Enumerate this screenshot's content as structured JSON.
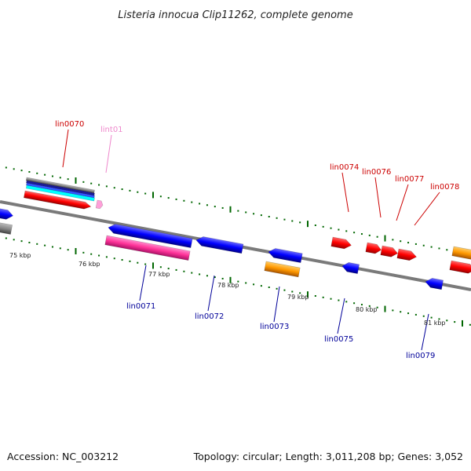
{
  "title": "Listeria innocua Clip11262, complete genome",
  "footer": {
    "accession": "Accession: NC_003212",
    "summary": "Topology: circular; Length: 3,011,208 bp; Genes: 3,052"
  },
  "colors": {
    "forward_cds": "#ff0000",
    "reverse_cds": "#0000ff",
    "rna": "#ff9900",
    "reverse_highlight": "#ff3399",
    "lint": "#ff9fd9",
    "label_forward": "#cc0000",
    "label_reverse": "#000099",
    "label_lint": "#ee88cc",
    "tick": "#006600",
    "backbone": "#7a7a7a"
  },
  "scale_labels": [
    "75 kbp",
    "76 kbp",
    "77 kbp",
    "78 kbp",
    "79 kbp",
    "80 kbp",
    "81 kbp"
  ],
  "gene_labels": {
    "forward": [
      "lin0070",
      "lin0074",
      "lin0076",
      "lin0077",
      "lin0078"
    ],
    "reverse": [
      "lin0071",
      "lin0072",
      "lin0073",
      "lin0075",
      "lin0079"
    ],
    "other": [
      "lint01"
    ]
  }
}
